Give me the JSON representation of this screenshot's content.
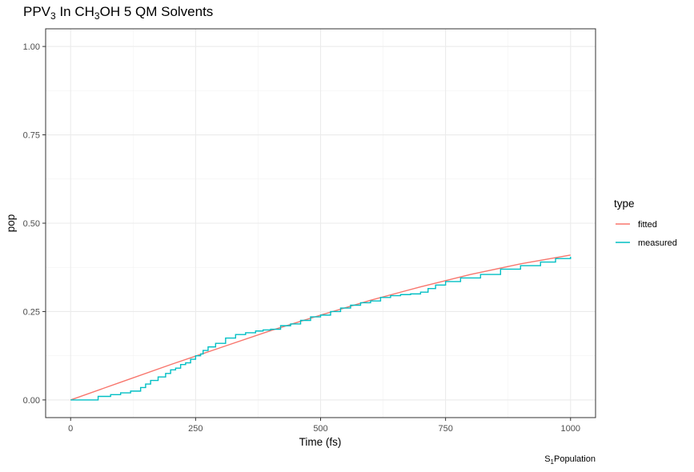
{
  "chart_data": {
    "type": "line",
    "title": "PPV",
    "title_sub1": "3",
    "title_mid": " In CH",
    "title_sub2": "3",
    "title_end": "OH 5 QM Solvents",
    "xlabel": "Time (fs)",
    "ylabel": "pop",
    "caption_sub": "1",
    "caption_main": "Population",
    "caption_prefix": "S",
    "xlim": [
      -50,
      1050
    ],
    "ylim": [
      -0.05,
      1.05
    ],
    "x_ticks": [
      0,
      250,
      500,
      750,
      1000
    ],
    "x_tick_labels": [
      "0",
      "250",
      "500",
      "750",
      "1000"
    ],
    "y_ticks": [
      0,
      0.25,
      0.5,
      0.75,
      1.0
    ],
    "y_tick_labels": [
      "0.00",
      "0.25",
      "0.50",
      "0.75",
      "1.00"
    ],
    "grid": true,
    "legend_position": "right",
    "legend_title": "type",
    "series": [
      {
        "name": "fitted",
        "color": "#F8766D",
        "x": [
          0,
          100,
          200,
          300,
          400,
          500,
          600,
          700,
          800,
          900,
          1000
        ],
        "y": [
          0.0,
          0.05,
          0.1,
          0.148,
          0.196,
          0.24,
          0.282,
          0.32,
          0.355,
          0.385,
          0.41
        ]
      },
      {
        "name": "measured",
        "color": "#00BFC4",
        "x": [
          0,
          20,
          40,
          55,
          80,
          100,
          120,
          140,
          150,
          160,
          175,
          190,
          200,
          210,
          220,
          230,
          240,
          250,
          260,
          265,
          275,
          290,
          310,
          330,
          350,
          370,
          385,
          400,
          420,
          440,
          460,
          480,
          500,
          520,
          540,
          560,
          580,
          600,
          620,
          640,
          660,
          680,
          700,
          715,
          730,
          750,
          780,
          820,
          860,
          900,
          940,
          970,
          1000
        ],
        "y": [
          0.0,
          0.0,
          0.0,
          0.01,
          0.015,
          0.02,
          0.025,
          0.035,
          0.045,
          0.055,
          0.065,
          0.075,
          0.085,
          0.09,
          0.1,
          0.105,
          0.115,
          0.125,
          0.13,
          0.14,
          0.15,
          0.16,
          0.175,
          0.185,
          0.19,
          0.195,
          0.198,
          0.2,
          0.21,
          0.215,
          0.225,
          0.235,
          0.24,
          0.25,
          0.26,
          0.268,
          0.275,
          0.28,
          0.29,
          0.295,
          0.298,
          0.3,
          0.305,
          0.315,
          0.325,
          0.335,
          0.345,
          0.355,
          0.37,
          0.38,
          0.39,
          0.4,
          0.405
        ]
      }
    ]
  }
}
